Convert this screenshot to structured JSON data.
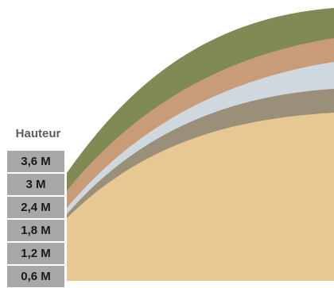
{
  "diagram": {
    "height_title": "Hauteur",
    "height_scale": [
      "3,6 M",
      "3 M",
      "2,4 M",
      "1,8 M",
      "1,2 M",
      "0,6 M"
    ]
  },
  "colors": {
    "layer_outer": "#7f8a55",
    "layer_second": "#c99c79",
    "layer_third": "#cfd8df",
    "layer_fourth": "#9a8f79",
    "layer_core": "#e8c892",
    "scale_cell": "#a8a8a8"
  }
}
